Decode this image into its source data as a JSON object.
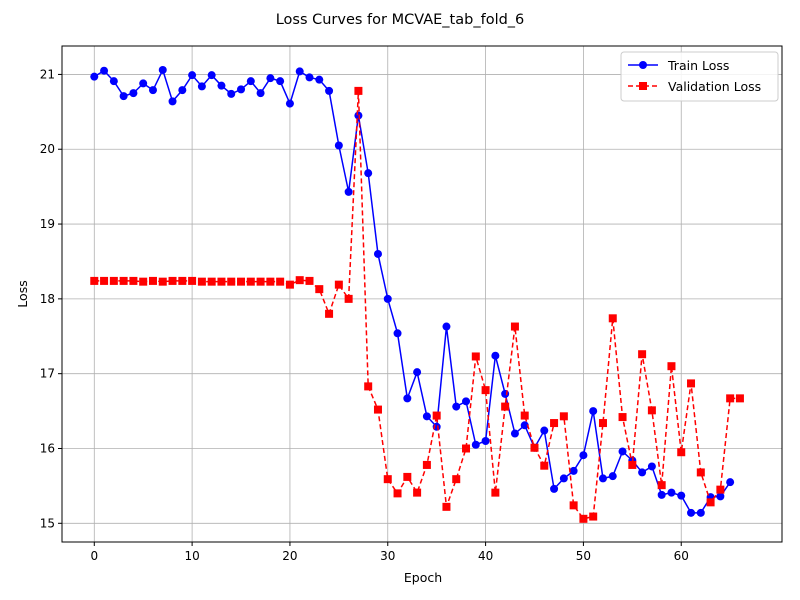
{
  "chart_data": {
    "type": "line",
    "title": "Loss Curves for MCVAE_tab_fold_6",
    "xlabel": "Epoch",
    "ylabel": "Loss",
    "xlim": [
      -3.3,
      70.3
    ],
    "ylim": [
      14.75,
      21.38
    ],
    "xticks": [
      0,
      10,
      20,
      30,
      40,
      50,
      60
    ],
    "yticks": [
      15,
      16,
      17,
      18,
      19,
      20,
      21
    ],
    "grid": true,
    "legend_position": "top-right",
    "series": [
      {
        "name": "Train Loss",
        "color": "#0000ff",
        "marker": "circle",
        "line_style": "solid",
        "x": [
          0,
          1,
          2,
          3,
          4,
          5,
          6,
          7,
          8,
          9,
          10,
          11,
          12,
          13,
          14,
          15,
          16,
          17,
          18,
          19,
          20,
          21,
          22,
          23,
          24,
          25,
          26,
          27,
          28,
          29,
          30,
          31,
          32,
          33,
          34,
          35,
          36,
          37,
          38,
          39,
          40,
          41,
          42,
          43,
          44,
          45,
          46,
          47,
          48,
          49,
          50,
          51,
          52,
          53,
          54,
          55,
          56,
          57,
          58,
          59,
          60,
          61,
          62,
          63,
          64,
          65
        ],
        "values": [
          20.97,
          21.05,
          20.91,
          20.71,
          20.75,
          20.88,
          20.79,
          21.06,
          20.64,
          20.79,
          20.99,
          20.84,
          20.99,
          20.85,
          20.74,
          20.8,
          20.91,
          20.75,
          20.95,
          20.91,
          20.61,
          21.04,
          20.96,
          20.93,
          20.78,
          20.05,
          19.43,
          20.45,
          19.68,
          18.6,
          18.0,
          17.54,
          16.67,
          17.02,
          16.43,
          16.29,
          17.63,
          16.56,
          16.63,
          16.05,
          16.1,
          17.24,
          16.73,
          16.2,
          16.31,
          16.01,
          16.24,
          15.46,
          15.6,
          15.7,
          15.91,
          16.5,
          15.6,
          15.63,
          15.96,
          15.84,
          15.68,
          15.76,
          15.38,
          15.41,
          15.37,
          15.14,
          15.14,
          15.35,
          15.36,
          15.55
        ]
      },
      {
        "name": "Validation Loss",
        "color": "#ff0000",
        "marker": "square",
        "line_style": "dashed",
        "x": [
          0,
          1,
          2,
          3,
          4,
          5,
          6,
          7,
          8,
          9,
          10,
          11,
          12,
          13,
          14,
          15,
          16,
          17,
          18,
          19,
          20,
          21,
          22,
          23,
          24,
          25,
          26,
          27,
          28,
          29,
          30,
          31,
          32,
          33,
          34,
          35,
          36,
          37,
          38,
          39,
          40,
          41,
          42,
          43,
          44,
          45,
          46,
          47,
          48,
          49,
          50,
          51,
          52,
          53,
          54,
          55,
          56,
          57,
          58,
          59,
          60,
          61,
          62,
          63,
          64,
          65,
          66
        ],
        "values": [
          18.24,
          18.24,
          18.24,
          18.24,
          18.24,
          18.23,
          18.24,
          18.23,
          18.24,
          18.24,
          18.24,
          18.23,
          18.23,
          18.23,
          18.23,
          18.23,
          18.23,
          18.23,
          18.23,
          18.23,
          18.19,
          18.25,
          18.24,
          18.13,
          17.8,
          18.19,
          18.0,
          20.78,
          16.83,
          16.52,
          15.59,
          15.4,
          15.62,
          15.41,
          15.78,
          16.44,
          15.22,
          15.59,
          16.0,
          17.23,
          16.78,
          15.41,
          16.56,
          17.63,
          16.44,
          16.01,
          15.77,
          16.34,
          16.43,
          15.24,
          15.06,
          15.09,
          16.34,
          17.74,
          16.42,
          15.78,
          17.26,
          16.51,
          15.51,
          17.1,
          15.95,
          16.87,
          15.68,
          15.28,
          15.45,
          16.67,
          16.67
        ]
      }
    ]
  }
}
